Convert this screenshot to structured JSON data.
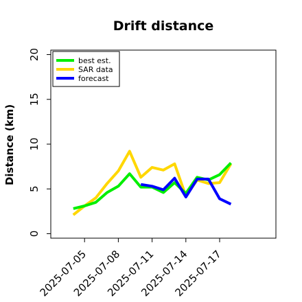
{
  "chart_data": {
    "type": "line",
    "title": "Drift distance",
    "xlabel": "",
    "ylabel": "Distance (km)",
    "ylim": [
      -0.5,
      20.5
    ],
    "xlim": [
      "2025-07-02",
      "2025-07-22"
    ],
    "x_tick_labels": [
      "2025-07-05",
      "2025-07-08",
      "2025-07-11",
      "2025-07-14",
      "2025-07-17"
    ],
    "y_ticks": [
      0,
      5,
      10,
      15,
      20
    ],
    "y_tick_labels": [
      "0",
      "5",
      "10",
      "15",
      "20"
    ],
    "grid": false,
    "legend_position": "top-left",
    "series": [
      {
        "name": "SAR data",
        "color": "#ffd700",
        "x": [
          "2025-07-04",
          "2025-07-05",
          "2025-07-06",
          "2025-07-07",
          "2025-07-08",
          "2025-07-09",
          "2025-07-10",
          "2025-07-11",
          "2025-07-12",
          "2025-07-13",
          "2025-07-14",
          "2025-07-15",
          "2025-07-16",
          "2025-07-17",
          "2025-07-18"
        ],
        "values": [
          2.1,
          3.1,
          4.0,
          5.6,
          7.0,
          9.2,
          6.3,
          7.4,
          7.1,
          7.8,
          4.2,
          6.0,
          5.6,
          5.7,
          7.8
        ]
      },
      {
        "name": "best est.",
        "color": "#00ee00",
        "x": [
          "2025-07-04",
          "2025-07-05",
          "2025-07-06",
          "2025-07-07",
          "2025-07-08",
          "2025-07-09",
          "2025-07-10",
          "2025-07-11",
          "2025-07-12",
          "2025-07-13",
          "2025-07-14",
          "2025-07-15",
          "2025-07-16",
          "2025-07-17",
          "2025-07-18"
        ],
        "values": [
          2.8,
          3.1,
          3.5,
          4.6,
          5.3,
          6.7,
          5.2,
          5.2,
          4.6,
          5.7,
          4.5,
          6.3,
          6.0,
          6.6,
          7.9
        ]
      },
      {
        "name": "forecast",
        "color": "#0000ff",
        "x": [
          "2025-07-10",
          "2025-07-11",
          "2025-07-12",
          "2025-07-13",
          "2025-07-14",
          "2025-07-15",
          "2025-07-16",
          "2025-07-17",
          "2025-07-18"
        ],
        "values": [
          5.5,
          5.3,
          4.9,
          6.2,
          4.1,
          6.1,
          6.1,
          3.9,
          3.3
        ]
      }
    ]
  }
}
